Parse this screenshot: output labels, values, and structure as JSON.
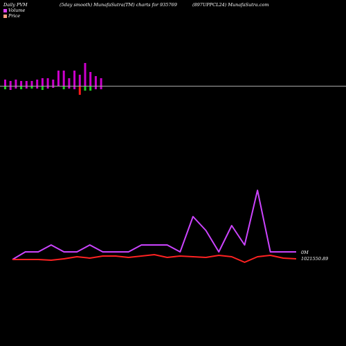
{
  "header": {
    "left": "Daily PVM",
    "center": "(5day smooth) MunafaSutra(TM) charts for 935769",
    "right": "(897UPPCL24) MunafaSutra.com"
  },
  "legend": [
    {
      "label": "Volume",
      "color": "#e040fb"
    },
    {
      "label": "Price",
      "color": "#ff9f80"
    }
  ],
  "readouts": {
    "volume_last": "0M",
    "price_last": "1021550.89"
  },
  "colors": {
    "volume_up": "#cc00cc",
    "volume_down_pos": "#ff1a1a",
    "volume_neg": "#22cc22",
    "volume_line": "#cc44ff",
    "price_line": "#ff2222",
    "baseline": "#aaaaaa"
  },
  "chart_data": [
    {
      "type": "bar",
      "title": "",
      "bars": [
        {
          "up": 9,
          "down": 4,
          "up_color": "magenta",
          "down_color": "green"
        },
        {
          "up": 7,
          "down": 5,
          "up_color": "magenta",
          "down_color": "magenta"
        },
        {
          "up": 9,
          "down": 3,
          "up_color": "magenta",
          "down_color": "magenta"
        },
        {
          "up": 7,
          "down": 4,
          "up_color": "magenta",
          "down_color": "green"
        },
        {
          "up": 7,
          "down": 3,
          "up_color": "magenta",
          "down_color": "magenta"
        },
        {
          "up": 7,
          "down": 3,
          "up_color": "magenta",
          "down_color": "green"
        },
        {
          "up": 9,
          "down": 3,
          "up_color": "magenta",
          "down_color": "magenta"
        },
        {
          "up": 11,
          "down": 5,
          "up_color": "magenta",
          "down_color": "green"
        },
        {
          "up": 11,
          "down": 3,
          "up_color": "magenta",
          "down_color": "magenta"
        },
        {
          "up": 9,
          "down": 2,
          "up_color": "magenta",
          "down_color": "magenta"
        },
        {
          "up": 22,
          "down": 0,
          "up_color": "magenta",
          "down_color": "magenta"
        },
        {
          "up": 22,
          "down": 4,
          "up_color": "magenta",
          "down_color": "green"
        },
        {
          "up": 11,
          "down": 3,
          "up_color": "magenta",
          "down_color": "magenta"
        },
        {
          "up": 22,
          "down": 4,
          "up_color": "magenta",
          "down_color": "magenta"
        },
        {
          "up": 16,
          "down": 12,
          "up_color": "magenta",
          "down_color": "red"
        },
        {
          "up": 33,
          "down": 6,
          "up_color": "magenta",
          "down_color": "green"
        },
        {
          "up": 20,
          "down": 6,
          "up_color": "magenta",
          "down_color": "green"
        },
        {
          "up": 14,
          "down": 4,
          "up_color": "magenta",
          "down_color": "magenta"
        },
        {
          "up": 11,
          "down": 4,
          "up_color": "magenta",
          "down_color": "magenta"
        }
      ]
    },
    {
      "type": "line",
      "title": "",
      "ylim": [
        0,
        100
      ],
      "series": [
        {
          "values": [
            0,
            11,
            11,
            21,
            11,
            11,
            21,
            11,
            11,
            11,
            21,
            21,
            21,
            11,
            62,
            42,
            11,
            49,
            21,
            100,
            11,
            11,
            11
          ]
        },
        {
          "values": [
            0,
            0,
            0,
            -1,
            1,
            4,
            2,
            5,
            5,
            3,
            5,
            7,
            3,
            5,
            4,
            3,
            6,
            4,
            -4,
            4,
            6,
            2,
            1
          ]
        }
      ]
    }
  ]
}
